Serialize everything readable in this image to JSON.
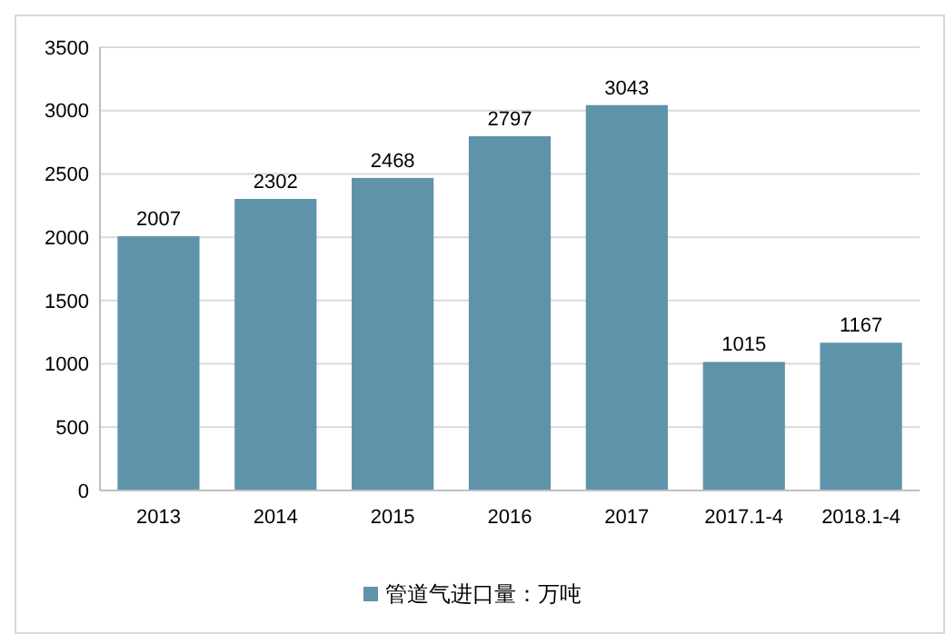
{
  "chart_data": {
    "type": "bar",
    "categories": [
      "2013",
      "2014",
      "2015",
      "2016",
      "2017",
      "2017.1-4",
      "2018.1-4"
    ],
    "series": [
      {
        "name": "管道气进口量：万吨",
        "color": "#5f93a9",
        "values": [
          2007,
          2302,
          2468,
          2797,
          3043,
          1015,
          1167
        ]
      }
    ],
    "ylim": [
      0,
      3500
    ],
    "yticks": [
      0,
      500,
      1000,
      1500,
      2000,
      2500,
      3000,
      3500
    ],
    "grid": "y",
    "data_labels": true,
    "legend": "bottom"
  }
}
